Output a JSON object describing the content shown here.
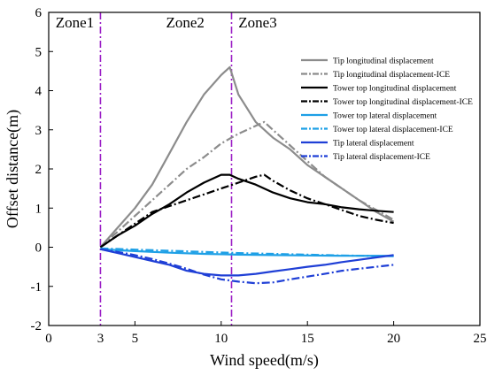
{
  "chart_data": {
    "type": "line",
    "title": "",
    "xlabel": "Wind speed(m/s)",
    "ylabel": "Offset distance(m)",
    "xlim": [
      0,
      25
    ],
    "ylim": [
      -2,
      6
    ],
    "xticks": [
      0,
      5,
      10,
      15,
      20,
      25
    ],
    "yticks": [
      -2,
      -1,
      0,
      1,
      2,
      3,
      4,
      5,
      6
    ],
    "extra_xtick": {
      "value": 3,
      "label": "3"
    },
    "grid": false,
    "legend_position": "top-right",
    "zone_lines": [
      3,
      10.6
    ],
    "zone_labels": [
      {
        "text": "Zone1",
        "x": 0.4,
        "y": 5.75
      },
      {
        "text": "Zone2",
        "x": 6.8,
        "y": 5.75
      },
      {
        "text": "Zone3",
        "x": 11.0,
        "y": 5.75
      }
    ],
    "series": [
      {
        "name": "Tip longitudinal displacement",
        "color": "#8c8c8c",
        "dash": "solid",
        "x": [
          3,
          4,
          5,
          6,
          7,
          8,
          9,
          10,
          10.5,
          11,
          12,
          13,
          14,
          15,
          16,
          17,
          18,
          19,
          20
        ],
        "y": [
          0,
          0.5,
          1.0,
          1.6,
          2.4,
          3.2,
          3.9,
          4.4,
          4.6,
          3.9,
          3.2,
          2.8,
          2.5,
          2.1,
          1.8,
          1.5,
          1.2,
          0.9,
          0.65
        ]
      },
      {
        "name": "Tip longitudinal displacement-ICE",
        "color": "#8c8c8c",
        "dash": "dashdot",
        "x": [
          3,
          4,
          5,
          6,
          7,
          8,
          9,
          10,
          11,
          12,
          12.5,
          13,
          14,
          15,
          16,
          17,
          18,
          19,
          20
        ],
        "y": [
          0,
          0.4,
          0.8,
          1.2,
          1.6,
          2.0,
          2.3,
          2.65,
          2.9,
          3.1,
          3.2,
          3.0,
          2.6,
          2.2,
          1.8,
          1.5,
          1.2,
          0.95,
          0.7
        ]
      },
      {
        "name": "Tower top longitudinal displacement",
        "color": "#000000",
        "dash": "solid",
        "x": [
          3,
          4,
          5,
          6,
          7,
          8,
          9,
          10,
          10.5,
          11,
          12,
          13,
          14,
          15,
          16,
          17,
          18,
          19,
          20
        ],
        "y": [
          0,
          0.3,
          0.55,
          0.85,
          1.1,
          1.4,
          1.65,
          1.85,
          1.85,
          1.75,
          1.6,
          1.4,
          1.25,
          1.15,
          1.1,
          1.02,
          0.97,
          0.93,
          0.9
        ]
      },
      {
        "name": "Tower top longitudinal displacement-ICE",
        "color": "#000000",
        "dash": "dashdot",
        "x": [
          3,
          4,
          5,
          6,
          7,
          8,
          9,
          10,
          11,
          12,
          12.5,
          13,
          14,
          15,
          16,
          17,
          18,
          19,
          20
        ],
        "y": [
          0,
          0.3,
          0.6,
          0.9,
          1.05,
          1.2,
          1.35,
          1.5,
          1.65,
          1.8,
          1.85,
          1.7,
          1.45,
          1.25,
          1.1,
          0.95,
          0.8,
          0.7,
          0.62
        ]
      },
      {
        "name": "Tower top lateral displacement",
        "color": "#1ea0e6",
        "dash": "solid",
        "x": [
          3,
          5,
          7,
          9,
          11,
          13,
          15,
          17,
          20
        ],
        "y": [
          -0.05,
          -0.1,
          -0.14,
          -0.17,
          -0.19,
          -0.2,
          -0.21,
          -0.22,
          -0.22
        ]
      },
      {
        "name": "Tower top lateral displacement-ICE",
        "color": "#1ea0e6",
        "dash": "dashdot",
        "x": [
          3,
          5,
          7,
          9,
          11,
          13,
          15,
          17,
          20
        ],
        "y": [
          -0.03,
          -0.06,
          -0.09,
          -0.12,
          -0.15,
          -0.17,
          -0.19,
          -0.21,
          -0.23
        ]
      },
      {
        "name": "Tip lateral displacement",
        "color": "#1f3fd6",
        "dash": "solid",
        "x": [
          3,
          4,
          5,
          6,
          7,
          8,
          9,
          10,
          11,
          12,
          13,
          14,
          15,
          16,
          17,
          18,
          19,
          20
        ],
        "y": [
          -0.05,
          -0.15,
          -0.25,
          -0.35,
          -0.45,
          -0.6,
          -0.68,
          -0.72,
          -0.72,
          -0.68,
          -0.62,
          -0.56,
          -0.5,
          -0.45,
          -0.38,
          -0.32,
          -0.26,
          -0.2
        ]
      },
      {
        "name": "Tip lateral displacement-ICE",
        "color": "#1f3fd6",
        "dash": "dashdot",
        "x": [
          3,
          4,
          5,
          6,
          7,
          8,
          9,
          10,
          11,
          12,
          13,
          14,
          15,
          16,
          17,
          18,
          19,
          20
        ],
        "y": [
          -0.05,
          -0.12,
          -0.2,
          -0.3,
          -0.42,
          -0.55,
          -0.7,
          -0.82,
          -0.88,
          -0.92,
          -0.9,
          -0.82,
          -0.75,
          -0.68,
          -0.6,
          -0.55,
          -0.5,
          -0.45
        ]
      }
    ]
  }
}
